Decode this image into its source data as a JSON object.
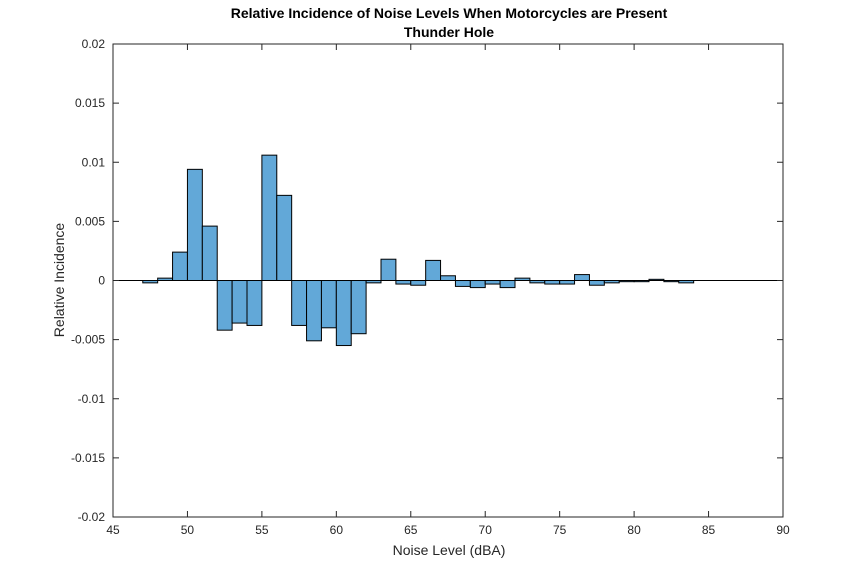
{
  "chart_data": {
    "type": "bar",
    "title": "Relative Incidence of Noise Levels When Motorcycles are Present",
    "subtitle": "Thunder Hole",
    "xlabel": "Noise Level (dBA)",
    "ylabel": "Relative Incidence",
    "xlim": [
      45,
      90
    ],
    "ylim": [
      -0.02,
      0.02
    ],
    "x_ticks": [
      45,
      50,
      55,
      60,
      65,
      70,
      75,
      80,
      85,
      90
    ],
    "x_tick_labels": [
      "45",
      "50",
      "55",
      "60",
      "65",
      "70",
      "75",
      "80",
      "85",
      "90"
    ],
    "y_ticks": [
      -0.02,
      -0.015,
      -0.01,
      -0.005,
      0,
      0.005,
      0.01,
      0.015,
      0.02
    ],
    "y_tick_labels": [
      "-0.02",
      "-0.015",
      "-0.01",
      "-0.005",
      "0",
      "0.005",
      "0.01",
      "0.015",
      "0.02"
    ],
    "bin_width": 1,
    "grid": false,
    "x": [
      46.5,
      47.5,
      48.5,
      49.5,
      50.5,
      51.5,
      52.5,
      53.5,
      54.5,
      55.5,
      56.5,
      57.5,
      58.5,
      59.5,
      60.5,
      61.5,
      62.5,
      63.5,
      64.5,
      65.5,
      66.5,
      67.5,
      68.5,
      69.5,
      70.5,
      71.5,
      72.5,
      73.5,
      74.5,
      75.5,
      76.5,
      77.5,
      78.5,
      79.5,
      80.5,
      81.5,
      82.5,
      83.5,
      84.5,
      85.5,
      86.5,
      87.5,
      88.5,
      89.5
    ],
    "values": [
      0,
      -0.0002,
      0.0002,
      0.0024,
      0.0094,
      0.0046,
      -0.0042,
      -0.0036,
      -0.0038,
      0.0106,
      0.0072,
      -0.0038,
      -0.0051,
      -0.004,
      -0.0055,
      -0.0045,
      -0.0002,
      0.0018,
      -0.0003,
      -0.0004,
      0.0017,
      0.0004,
      -0.0005,
      -0.0006,
      -0.0003,
      -0.0006,
      0.0002,
      -0.0002,
      -0.0003,
      -0.0003,
      0.0005,
      -0.0004,
      -0.0002,
      -0.0001,
      -0.0001,
      0.0001,
      -0.0001,
      -0.0002,
      0,
      0,
      0,
      0,
      0,
      0
    ],
    "colors": {
      "bar_fill": "#62a8d8",
      "bar_edge": "#000000",
      "axes": "#262626"
    }
  }
}
